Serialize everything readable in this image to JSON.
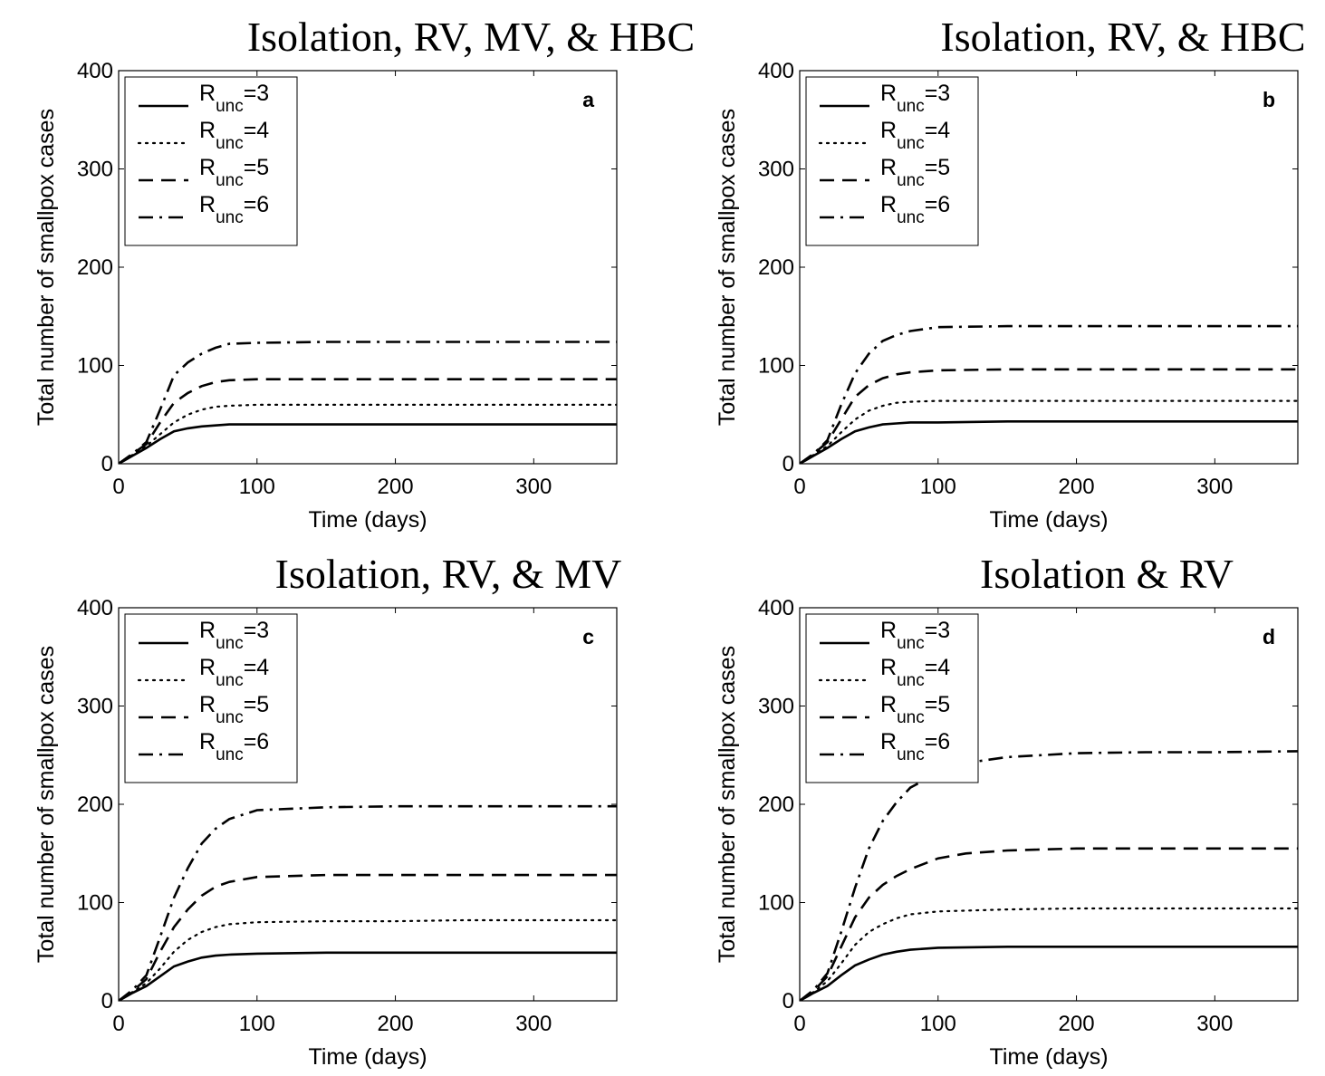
{
  "chart_data": [
    {
      "type": "line",
      "panel": "a",
      "title": "Isolation, RV, MV, & HBC",
      "xlabel": "Time (days)",
      "ylabel": "Total number of smallpox cases",
      "xlim": [
        0,
        360
      ],
      "ylim": [
        0,
        400
      ],
      "xticks": [
        0,
        100,
        200,
        300
      ],
      "yticks": [
        0,
        100,
        200,
        300,
        400
      ],
      "legend": "top-left",
      "series": [
        {
          "name": "R_unc=3",
          "label_base": "R",
          "label_sub": "unc",
          "label_rest": "=3",
          "style": "solid",
          "x": [
            0,
            10,
            20,
            30,
            40,
            50,
            60,
            70,
            80,
            100,
            150,
            200,
            250,
            300,
            360
          ],
          "y": [
            0,
            8,
            16,
            25,
            33,
            36,
            38,
            39,
            40,
            40,
            40,
            40,
            40,
            40,
            40
          ]
        },
        {
          "name": "R_unc=4",
          "label_base": "R",
          "label_sub": "unc",
          "label_rest": "=4",
          "style": "dotted",
          "x": [
            0,
            10,
            20,
            30,
            40,
            50,
            60,
            70,
            80,
            100,
            150,
            200,
            250,
            300,
            360
          ],
          "y": [
            0,
            9,
            18,
            30,
            42,
            50,
            55,
            58,
            59,
            60,
            60,
            60,
            60,
            60,
            60
          ]
        },
        {
          "name": "R_unc=5",
          "label_base": "R",
          "label_sub": "unc",
          "label_rest": "=5",
          "style": "dashed",
          "x": [
            0,
            10,
            20,
            30,
            40,
            50,
            60,
            70,
            80,
            100,
            150,
            200,
            250,
            300,
            360
          ],
          "y": [
            0,
            10,
            20,
            42,
            62,
            72,
            79,
            83,
            85,
            86,
            86,
            86,
            86,
            86,
            86
          ]
        },
        {
          "name": "R_unc=6",
          "label_base": "R",
          "label_sub": "unc",
          "label_rest": "=6",
          "style": "dashdot",
          "x": [
            0,
            10,
            20,
            30,
            40,
            50,
            60,
            70,
            80,
            100,
            150,
            200,
            250,
            300,
            360
          ],
          "y": [
            0,
            10,
            22,
            55,
            90,
            103,
            112,
            118,
            122,
            123,
            124,
            124,
            124,
            124,
            124
          ]
        }
      ]
    },
    {
      "type": "line",
      "panel": "b",
      "title": "Isolation, RV, & HBC",
      "xlabel": "Time (days)",
      "ylabel": "Total number of smallpox cases",
      "xlim": [
        0,
        360
      ],
      "ylim": [
        0,
        400
      ],
      "xticks": [
        0,
        100,
        200,
        300
      ],
      "yticks": [
        0,
        100,
        200,
        300,
        400
      ],
      "legend": "top-left",
      "series": [
        {
          "name": "R_unc=3",
          "label_base": "R",
          "label_sub": "unc",
          "label_rest": "=3",
          "style": "solid",
          "x": [
            0,
            10,
            20,
            30,
            40,
            50,
            60,
            70,
            80,
            100,
            150,
            200,
            250,
            300,
            360
          ],
          "y": [
            0,
            8,
            16,
            25,
            33,
            37,
            40,
            41,
            42,
            42,
            43,
            43,
            43,
            43,
            43
          ]
        },
        {
          "name": "R_unc=4",
          "label_base": "R",
          "label_sub": "unc",
          "label_rest": "=4",
          "style": "dotted",
          "x": [
            0,
            10,
            20,
            30,
            40,
            50,
            60,
            70,
            80,
            100,
            150,
            200,
            250,
            300,
            360
          ],
          "y": [
            0,
            9,
            18,
            32,
            45,
            54,
            59,
            62,
            63,
            64,
            64,
            64,
            64,
            64,
            64
          ]
        },
        {
          "name": "R_unc=5",
          "label_base": "R",
          "label_sub": "unc",
          "label_rest": "=5",
          "style": "dashed",
          "x": [
            0,
            10,
            20,
            30,
            40,
            50,
            60,
            70,
            80,
            100,
            150,
            200,
            250,
            300,
            360
          ],
          "y": [
            0,
            10,
            22,
            45,
            68,
            80,
            87,
            91,
            93,
            95,
            96,
            96,
            96,
            96,
            96
          ]
        },
        {
          "name": "R_unc=6",
          "label_base": "R",
          "label_sub": "unc",
          "label_rest": "=6",
          "style": "dashdot",
          "x": [
            0,
            10,
            20,
            30,
            40,
            50,
            60,
            70,
            80,
            100,
            150,
            200,
            250,
            300,
            360
          ],
          "y": [
            0,
            10,
            24,
            60,
            92,
            112,
            125,
            131,
            135,
            139,
            140,
            140,
            140,
            140,
            140
          ]
        }
      ]
    },
    {
      "type": "line",
      "panel": "c",
      "title": "Isolation, RV, & MV",
      "xlabel": "Time (days)",
      "ylabel": "Total number of smallpox cases",
      "xlim": [
        0,
        360
      ],
      "ylim": [
        0,
        400
      ],
      "xticks": [
        0,
        100,
        200,
        300
      ],
      "yticks": [
        0,
        100,
        200,
        300,
        400
      ],
      "legend": "top-left",
      "series": [
        {
          "name": "R_unc=3",
          "label_base": "R",
          "label_sub": "unc",
          "label_rest": "=3",
          "style": "solid",
          "x": [
            0,
            10,
            20,
            30,
            40,
            50,
            60,
            70,
            80,
            100,
            150,
            200,
            250,
            300,
            360
          ],
          "y": [
            0,
            8,
            15,
            25,
            35,
            40,
            44,
            46,
            47,
            48,
            49,
            49,
            49,
            49,
            49
          ]
        },
        {
          "name": "R_unc=4",
          "label_base": "R",
          "label_sub": "unc",
          "label_rest": "=4",
          "style": "dotted",
          "x": [
            0,
            10,
            20,
            30,
            40,
            50,
            60,
            70,
            80,
            100,
            150,
            200,
            250,
            300,
            360
          ],
          "y": [
            0,
            9,
            18,
            33,
            50,
            62,
            70,
            75,
            78,
            80,
            81,
            81,
            82,
            82,
            82
          ]
        },
        {
          "name": "R_unc=5",
          "label_base": "R",
          "label_sub": "unc",
          "label_rest": "=5",
          "style": "dashed",
          "x": [
            0,
            10,
            20,
            30,
            40,
            50,
            60,
            70,
            80,
            100,
            150,
            200,
            250,
            300,
            360
          ],
          "y": [
            0,
            10,
            22,
            50,
            75,
            93,
            107,
            116,
            121,
            126,
            128,
            128,
            128,
            128,
            128
          ]
        },
        {
          "name": "R_unc=6",
          "label_base": "R",
          "label_sub": "unc",
          "label_rest": "=6",
          "style": "dashdot",
          "x": [
            0,
            10,
            20,
            30,
            40,
            50,
            60,
            70,
            80,
            100,
            150,
            200,
            250,
            300,
            360
          ],
          "y": [
            0,
            11,
            26,
            65,
            105,
            135,
            160,
            175,
            185,
            194,
            197,
            198,
            198,
            198,
            198
          ]
        }
      ]
    },
    {
      "type": "line",
      "panel": "d",
      "title": "Isolation & RV",
      "xlabel": "Time (days)",
      "ylabel": "Total number of smallpox cases",
      "xlim": [
        0,
        360
      ],
      "ylim": [
        0,
        400
      ],
      "xticks": [
        0,
        100,
        200,
        300
      ],
      "yticks": [
        0,
        100,
        200,
        300,
        400
      ],
      "legend": "top-left",
      "series": [
        {
          "name": "R_unc=3",
          "label_base": "R",
          "label_sub": "unc",
          "label_rest": "=3",
          "style": "solid",
          "x": [
            0,
            10,
            20,
            30,
            40,
            50,
            60,
            70,
            80,
            100,
            150,
            200,
            250,
            300,
            360
          ],
          "y": [
            0,
            8,
            15,
            26,
            36,
            42,
            47,
            50,
            52,
            54,
            55,
            55,
            55,
            55,
            55
          ]
        },
        {
          "name": "R_unc=4",
          "label_base": "R",
          "label_sub": "unc",
          "label_rest": "=4",
          "style": "dotted",
          "x": [
            0,
            10,
            20,
            30,
            40,
            50,
            60,
            70,
            80,
            100,
            150,
            200,
            250,
            300,
            360
          ],
          "y": [
            0,
            9,
            20,
            38,
            57,
            70,
            78,
            84,
            88,
            91,
            93,
            94,
            94,
            94,
            94
          ]
        },
        {
          "name": "R_unc=5",
          "label_base": "R",
          "label_sub": "unc",
          "label_rest": "=5",
          "style": "dashed",
          "x": [
            0,
            10,
            20,
            30,
            40,
            50,
            60,
            70,
            80,
            100,
            120,
            150,
            200,
            250,
            300,
            360
          ],
          "y": [
            0,
            10,
            25,
            55,
            85,
            105,
            118,
            127,
            134,
            145,
            150,
            153,
            155,
            155,
            155,
            155
          ]
        },
        {
          "name": "R_unc=6",
          "label_base": "R",
          "label_sub": "unc",
          "label_rest": "=6",
          "style": "dashdot",
          "x": [
            0,
            10,
            20,
            30,
            40,
            50,
            60,
            70,
            80,
            100,
            120,
            150,
            200,
            250,
            300,
            360
          ],
          "y": [
            0,
            11,
            28,
            70,
            115,
            155,
            183,
            202,
            217,
            232,
            242,
            248,
            252,
            253,
            253,
            254
          ]
        }
      ]
    }
  ]
}
